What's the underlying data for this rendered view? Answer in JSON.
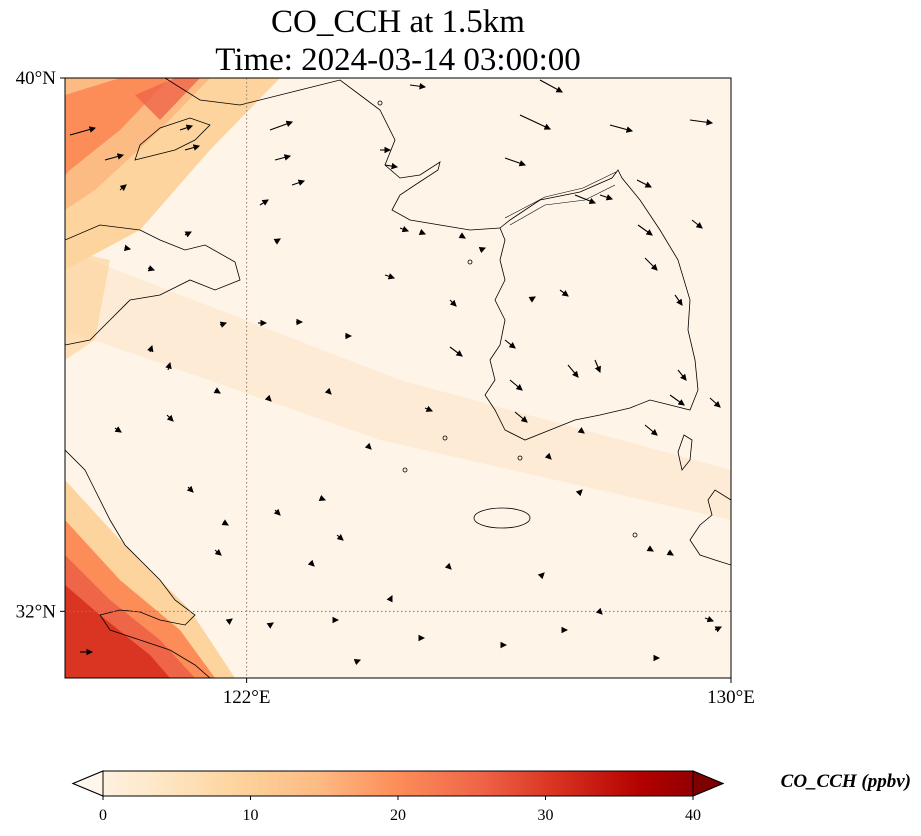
{
  "title": {
    "line1": "CO_CCH at 1.5km",
    "line2": "Time: 2024-03-14 03:00:00"
  },
  "map": {
    "extent": {
      "lon_min": 119,
      "lon_max": 130,
      "lat_min": 31,
      "lat_max": 40
    },
    "gridlines": {
      "style": "dotted",
      "color": "#8a7a6a",
      "lons": [
        122
      ],
      "lats": [
        32
      ]
    },
    "lat_ticks": [
      {
        "value": 40,
        "label": "40°N"
      },
      {
        "value": 32,
        "label": "32°N"
      }
    ],
    "lon_ticks": [
      {
        "value": 122,
        "label": "122°E"
      },
      {
        "value": 130,
        "label": "130°E"
      }
    ],
    "background_color": "#fef5e8"
  },
  "colorbar": {
    "label": "CO_CCH (ppbv)",
    "min": 0,
    "max": 40,
    "extend": "both",
    "colormap": "OrRd",
    "stops": [
      "#fff7ec",
      "#fee8c8",
      "#fdd49e",
      "#fdbb84",
      "#fc8d59",
      "#ef6548",
      "#d7301f",
      "#b30000",
      "#7f0000"
    ],
    "ticks": [
      {
        "value": 0,
        "label": "0"
      },
      {
        "value": 10,
        "label": "10"
      },
      {
        "value": 20,
        "label": "20"
      },
      {
        "value": 30,
        "label": "30"
      },
      {
        "value": 40,
        "label": "40"
      }
    ]
  }
}
